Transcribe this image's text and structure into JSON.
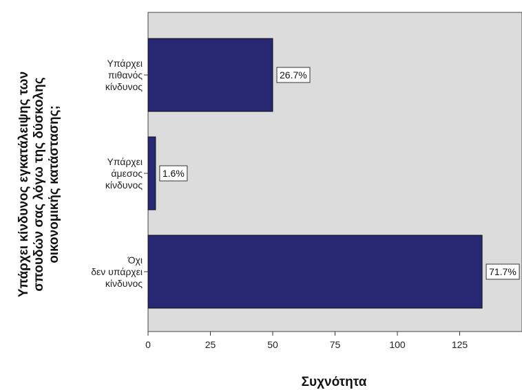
{
  "chart_data": {
    "type": "bar",
    "orientation": "horizontal",
    "categories": [
      [
        "Υπάρχει",
        "πιθανός",
        "κίνδυνος"
      ],
      [
        "Υπάρχει",
        "άμεσος",
        "κίνδυνος"
      ],
      [
        "Όχι",
        "δεν υπάρχει",
        "κίνδυνος"
      ]
    ],
    "values": [
      50,
      3,
      134
    ],
    "data_labels": [
      "26.7%",
      "1.6%",
      "71.7%"
    ],
    "xlabel": "Συχνότητα",
    "ylabel_lines": [
      "Υπάρχει κίνδυνος εγκατάλειψης των",
      "σπουδών σας λόγω της δύσκολης",
      "οικονομικής κατάστασης;"
    ],
    "xticks": [
      0,
      25,
      50,
      75,
      100,
      125
    ],
    "xlim": [
      0,
      150
    ],
    "colors": {
      "bar": "#262874",
      "plot_bg": "#dcdcdc"
    },
    "grid": false
  }
}
